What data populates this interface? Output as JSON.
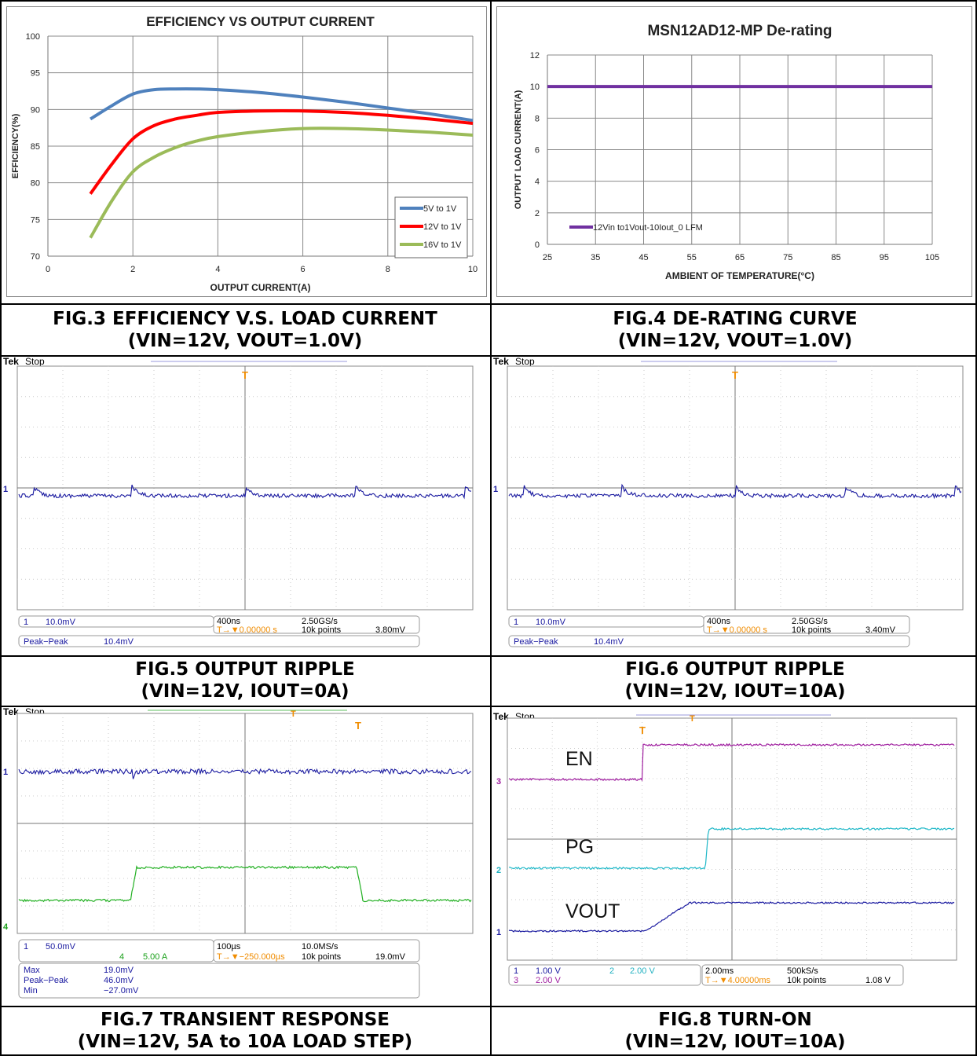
{
  "charts": [
    {
      "type": "line",
      "title": "EFFICIENCY VS OUTPUT CURRENT",
      "xlabel": "OUTPUT CURRENT(A)",
      "ylabel": "EFFICIENCY(%)",
      "xlim": [
        0,
        10
      ],
      "ylim": [
        70,
        100
      ],
      "xticks": [
        0,
        2,
        4,
        6,
        8,
        10
      ],
      "yticks": [
        70,
        75,
        80,
        85,
        90,
        95,
        100
      ],
      "grid": true,
      "legend": "bottom-right",
      "series": [
        {
          "name": "5V to 1V",
          "color": "#4f81bd",
          "x": [
            1,
            1.5,
            2,
            2.5,
            3,
            3.5,
            4,
            5,
            6,
            7,
            8,
            9,
            10
          ],
          "y": [
            88.7,
            90.5,
            92.1,
            92.7,
            92.8,
            92.8,
            92.7,
            92.3,
            91.7,
            91,
            90.2,
            89.4,
            88.5
          ]
        },
        {
          "name": "12V to 1V",
          "color": "#ff0000",
          "x": [
            1,
            1.5,
            2,
            2.5,
            3,
            3.5,
            4,
            5,
            6,
            7,
            8,
            9,
            10
          ],
          "y": [
            78.5,
            82.5,
            86,
            87.8,
            88.7,
            89.2,
            89.6,
            89.8,
            89.8,
            89.6,
            89.2,
            88.7,
            88.1
          ]
        },
        {
          "name": "16V to 1V",
          "color": "#9bbb59",
          "x": [
            1,
            1.5,
            2,
            2.5,
            3,
            3.5,
            4,
            5,
            6,
            7,
            8,
            9,
            10
          ],
          "y": [
            72.5,
            77.5,
            81.5,
            83.5,
            84.8,
            85.7,
            86.3,
            87,
            87.4,
            87.4,
            87.2,
            86.9,
            86.5
          ]
        }
      ]
    },
    {
      "type": "line",
      "title": "MSN12AD12-MP De-rating",
      "xlabel": "AMBIENT OF TEMPERATURE(°C)",
      "ylabel": "OUTPUT LOAD CURRENT(A)",
      "xlim": [
        25,
        105
      ],
      "ylim": [
        0,
        12
      ],
      "xticks": [
        25,
        35,
        45,
        55,
        65,
        75,
        85,
        95,
        105
      ],
      "yticks": [
        0,
        2,
        4,
        6,
        8,
        10,
        12
      ],
      "grid": true,
      "legend": "bottom-left",
      "series": [
        {
          "name": "12Vin to1Vout-10Iout_0 LFM",
          "color": "#7030a0",
          "x": [
            25,
            105
          ],
          "y": [
            10,
            10
          ]
        }
      ]
    }
  ],
  "captions": [
    {
      "l1": "FIG.3 EFFICIENCY V.S. LOAD CURRENT",
      "l2": "(VIN=12V, VOUT=1.0V)"
    },
    {
      "l1": "FIG.4 DE-RATING CURVE",
      "l2": "(VIN=12V, VOUT=1.0V)"
    },
    {
      "l1": "FIG.5 OUTPUT RIPPLE",
      "l2": "(VIN=12V, IOUT=0A)"
    },
    {
      "l1": "FIG.6 OUTPUT RIPPLE",
      "l2": "(VIN=12V, IOUT=10A)"
    },
    {
      "l1": "FIG.7 TRANSIENT RESPONSE",
      "l2": "(VIN=12V, 5A to 10A LOAD STEP)"
    },
    {
      "l1": "FIG.8 TURN-ON",
      "l2": "(VIN=12V, IOUT=10A)"
    }
  ],
  "scopes": [
    {
      "status": "Stop",
      "ch1": "10.0mV",
      "time": "400ns",
      "rate": "2.50GS/s",
      "delay": "0.00000 s",
      "points": "10k points",
      "trig": "3.80mV",
      "meas": [
        {
          "name": "Peak−Peak",
          "val": "10.4mV"
        }
      ]
    },
    {
      "status": "Stop",
      "ch1": "10.0mV",
      "time": "400ns",
      "rate": "2.50GS/s",
      "delay": "0.00000 s",
      "points": "10k points",
      "trig": "3.40mV",
      "meas": [
        {
          "name": "Peak−Peak",
          "val": "10.4mV"
        }
      ]
    },
    {
      "status": "Stop",
      "ch1": "50.0mV",
      "ch4": "5.00 A",
      "time": "100µs",
      "rate": "10.0MS/s",
      "delay": "−250.000µs",
      "points": "10k points",
      "trig": "19.0mV",
      "meas": [
        {
          "name": "Max",
          "val": "19.0mV"
        },
        {
          "name": "Peak−Peak",
          "val": "46.0mV"
        },
        {
          "name": "Min",
          "val": "−27.0mV"
        }
      ]
    },
    {
      "status": "Stop",
      "ch1": "1.00 V",
      "ch2": "2.00 V",
      "ch3": "2.00 V",
      "time": "2.00ms",
      "rate": "500kS/s",
      "delay": "4.00000ms",
      "points": "10k points",
      "trig": "1.08 V",
      "labels": [
        "EN",
        "PG",
        "VOUT"
      ]
    }
  ],
  "brand": "Tek"
}
